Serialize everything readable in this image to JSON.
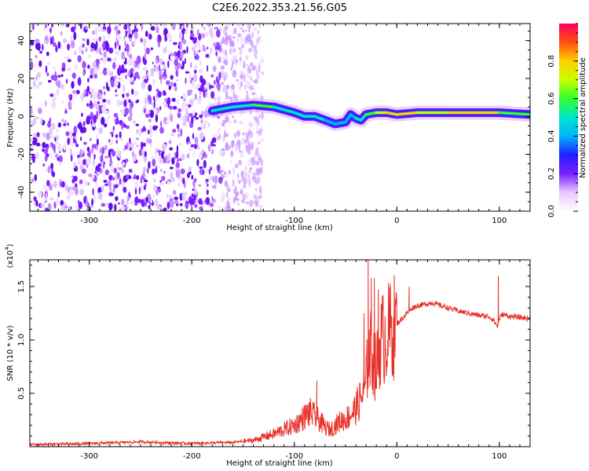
{
  "figure": {
    "title": "C2E6.2022.353.21.56.G05"
  },
  "chart_data": [
    {
      "type": "heatmap",
      "xlabel": "Height of straight line (km)",
      "ylabel": "Frequency (Hz)",
      "xlim": [
        -358,
        130
      ],
      "ylim": [
        -50,
        49
      ],
      "x_ticks": [
        -300,
        -200,
        -100,
        0,
        100
      ],
      "y_ticks": [
        -40,
        -20,
        0,
        20,
        40
      ],
      "x_tick_labels": [
        "-300",
        "-200",
        "-100",
        "0",
        "100"
      ],
      "y_tick_labels": [
        "-40",
        "-20",
        "0",
        "20",
        "40"
      ],
      "colorbar": {
        "label": "Normalized spectral amplitude",
        "range": [
          0,
          1
        ],
        "ticks": [
          "0.0",
          "0.2",
          "0.4",
          "0.6",
          "0.8"
        ],
        "colors": [
          "#ffffff",
          "#e8c8ff",
          "#7a20ff",
          "#2020ff",
          "#00b4ff",
          "#00e6c8",
          "#30ff30",
          "#c8ff00",
          "#ffd000",
          "#ff5010",
          "#ff0060"
        ]
      },
      "noise_region": {
        "x_range": [
          -358,
          -150
        ],
        "y_range": [
          -50,
          49
        ]
      },
      "signal_trace": {
        "x": [
          -180,
          -160,
          -140,
          -120,
          -100,
          -90,
          -80,
          -70,
          -60,
          -50,
          -45,
          -40,
          -35,
          -30,
          -20,
          -10,
          0,
          20,
          50,
          80,
          100,
          130
        ],
        "freq": [
          3,
          5,
          6,
          5,
          2,
          0,
          0,
          -2,
          -4,
          -3,
          1,
          -1,
          -2,
          1,
          2,
          2,
          1,
          2,
          2,
          2,
          2,
          1
        ],
        "amplitude": [
          0.4,
          0.5,
          0.55,
          0.55,
          0.5,
          0.5,
          0.45,
          0.45,
          0.4,
          0.4,
          0.35,
          0.4,
          0.5,
          0.55,
          0.7,
          0.75,
          0.8,
          0.7,
          0.75,
          0.8,
          0.7,
          0.5
        ]
      }
    },
    {
      "type": "line",
      "xlabel": "Height of straight line (km)",
      "ylabel": "SNR (10 * v/v)",
      "y_multiplier": "(x10",
      "y_multiplier_exp": "4",
      "xlim": [
        -358,
        130
      ],
      "ylim": [
        0,
        17500
      ],
      "x_ticks": [
        -300,
        -200,
        -100,
        0,
        100
      ],
      "y_ticks": [
        5000,
        10000,
        15000
      ],
      "x_tick_labels": [
        "-300",
        "-200",
        "-100",
        "0",
        "100"
      ],
      "y_tick_labels": [
        "0.5",
        "1.0",
        "1.5"
      ],
      "series": [
        {
          "color": "#e8302a",
          "x": [
            -358,
            -320,
            -280,
            -250,
            -220,
            -200,
            -180,
            -160,
            -150,
            -140,
            -130,
            -120,
            -110,
            -100,
            -95,
            -90,
            -85,
            -80,
            -75,
            -70,
            -65,
            -60,
            -55,
            -50,
            -45,
            -40,
            -35,
            -30,
            -28,
            -25,
            -22,
            -20,
            -17,
            -15,
            -10,
            -5,
            0,
            5,
            10,
            15,
            20,
            25,
            30,
            35,
            40,
            50,
            60,
            70,
            80,
            90,
            95,
            98,
            100,
            103,
            110,
            120,
            130
          ],
          "y": [
            200,
            250,
            350,
            450,
            350,
            300,
            350,
            400,
            500,
            600,
            900,
            1200,
            1600,
            2000,
            2400,
            2800,
            3200,
            2800,
            2400,
            1800,
            1600,
            2000,
            2400,
            2600,
            3000,
            3600,
            4500,
            6000,
            8500,
            9000,
            8000,
            7000,
            9500,
            10000,
            10500,
            11000,
            11500,
            12000,
            12500,
            13000,
            13200,
            13300,
            13400,
            13500,
            13300,
            13000,
            12700,
            12500,
            12300,
            12200,
            11800,
            11200,
            12000,
            12400,
            12200,
            12100,
            12000
          ],
          "spikes": [
            {
              "x": -78,
              "y": 6200
            },
            {
              "x": -32,
              "y": 12500
            },
            {
              "x": -28,
              "y": 17500
            },
            {
              "x": -25,
              "y": 15800
            },
            {
              "x": -22,
              "y": 15800
            },
            {
              "x": -18,
              "y": 14700
            },
            {
              "x": 12,
              "y": 15000
            },
            {
              "x": 99,
              "y": 16000
            }
          ]
        }
      ]
    }
  ]
}
